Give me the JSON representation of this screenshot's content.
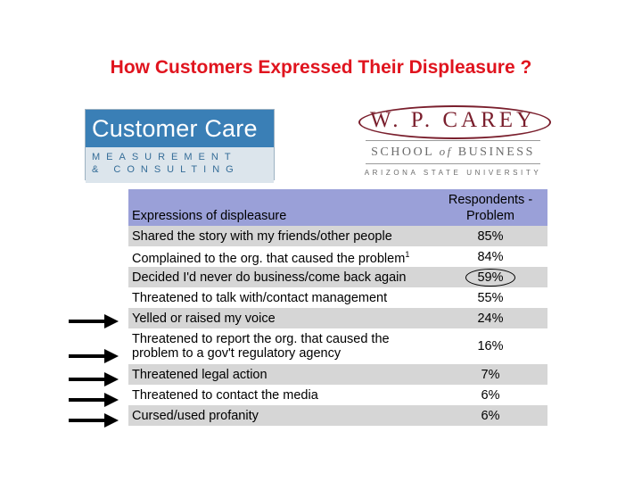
{
  "slide": {
    "title": "How Customers Expressed Their Displeasure ?"
  },
  "logo_customer_care": {
    "line1": "Customer Care",
    "line2": "MEASUREMENT",
    "line3": "& CONSULTING"
  },
  "logo_wp_carey": {
    "name": "W. P. CAREY",
    "school": "SCHOOL of BUSINESS",
    "university": "ARIZONA STATE UNIVERSITY"
  },
  "table": {
    "header": {
      "col1": "Expressions of displeasure",
      "col2_line1": "Respondents -",
      "col2_line2": "Problem"
    },
    "rows": [
      {
        "label": "Shared the story with my friends/other people",
        "value": "85%"
      },
      {
        "label": "Complained to the org. that caused the problem",
        "footnote": "1",
        "value": "84%"
      },
      {
        "label": "Decided I'd never do business/come back again",
        "value": "59%"
      },
      {
        "label": "Threatened to talk with/contact management",
        "value": "55%"
      },
      {
        "label": "Yelled or raised my voice",
        "value": "24%"
      },
      {
        "label": "Threatened to report the org. that caused the problem to a gov't regulatory agency",
        "value": "16%"
      },
      {
        "label": "Threatened legal action",
        "value": "7%"
      },
      {
        "label": "Threatened to contact the media",
        "value": "6%"
      },
      {
        "label": "Cursed/used profanity",
        "value": "6%"
      }
    ]
  },
  "colors": {
    "title": "#e0141e",
    "header_bg": "#9aa0d8",
    "shaded_row": "#d6d6d6",
    "logo_blue": "#3a7fb6",
    "logo_maroon": "#7a1f2d"
  },
  "icons": {
    "arrow": "arrow-right-icon"
  }
}
